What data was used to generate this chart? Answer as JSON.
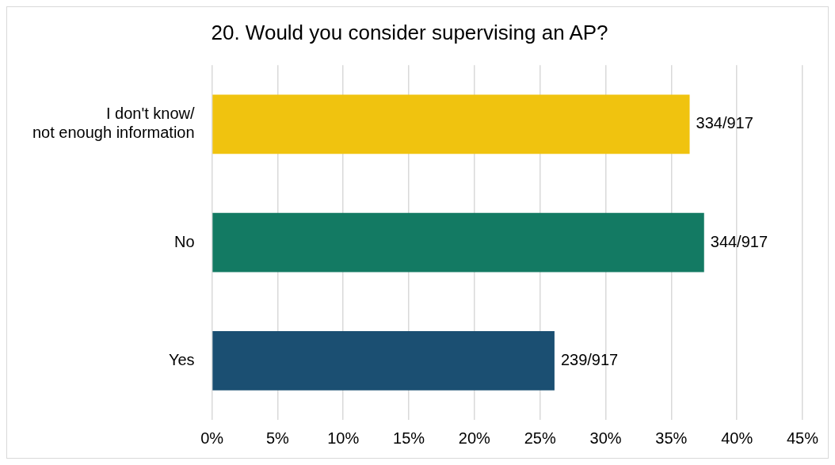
{
  "chart_data": {
    "type": "bar",
    "title": "20. Would you consider supervising an AP?",
    "orientation": "horizontal",
    "categories": [
      "I don't know/\nnot enough information",
      "No",
      "Yes"
    ],
    "values": [
      36.4,
      37.5,
      26.1
    ],
    "colors": [
      "#f0c30f",
      "#137a63",
      "#1b4f72"
    ],
    "value_labels": [
      "334/917",
      "344/917",
      "239/917"
    ],
    "xlim": [
      0,
      45
    ],
    "xticks": [
      {
        "value": 0,
        "label": "0%"
      },
      {
        "value": 5,
        "label": "5%"
      },
      {
        "value": 10,
        "label": "10%"
      },
      {
        "value": 15,
        "label": "15%"
      },
      {
        "value": 20,
        "label": "20%"
      },
      {
        "value": 25,
        "label": "25%"
      },
      {
        "value": 30,
        "label": "30%"
      },
      {
        "value": 35,
        "label": "35%"
      },
      {
        "value": 40,
        "label": "40%"
      },
      {
        "value": 45,
        "label": "45%"
      }
    ],
    "grid": "x",
    "legend": false
  }
}
